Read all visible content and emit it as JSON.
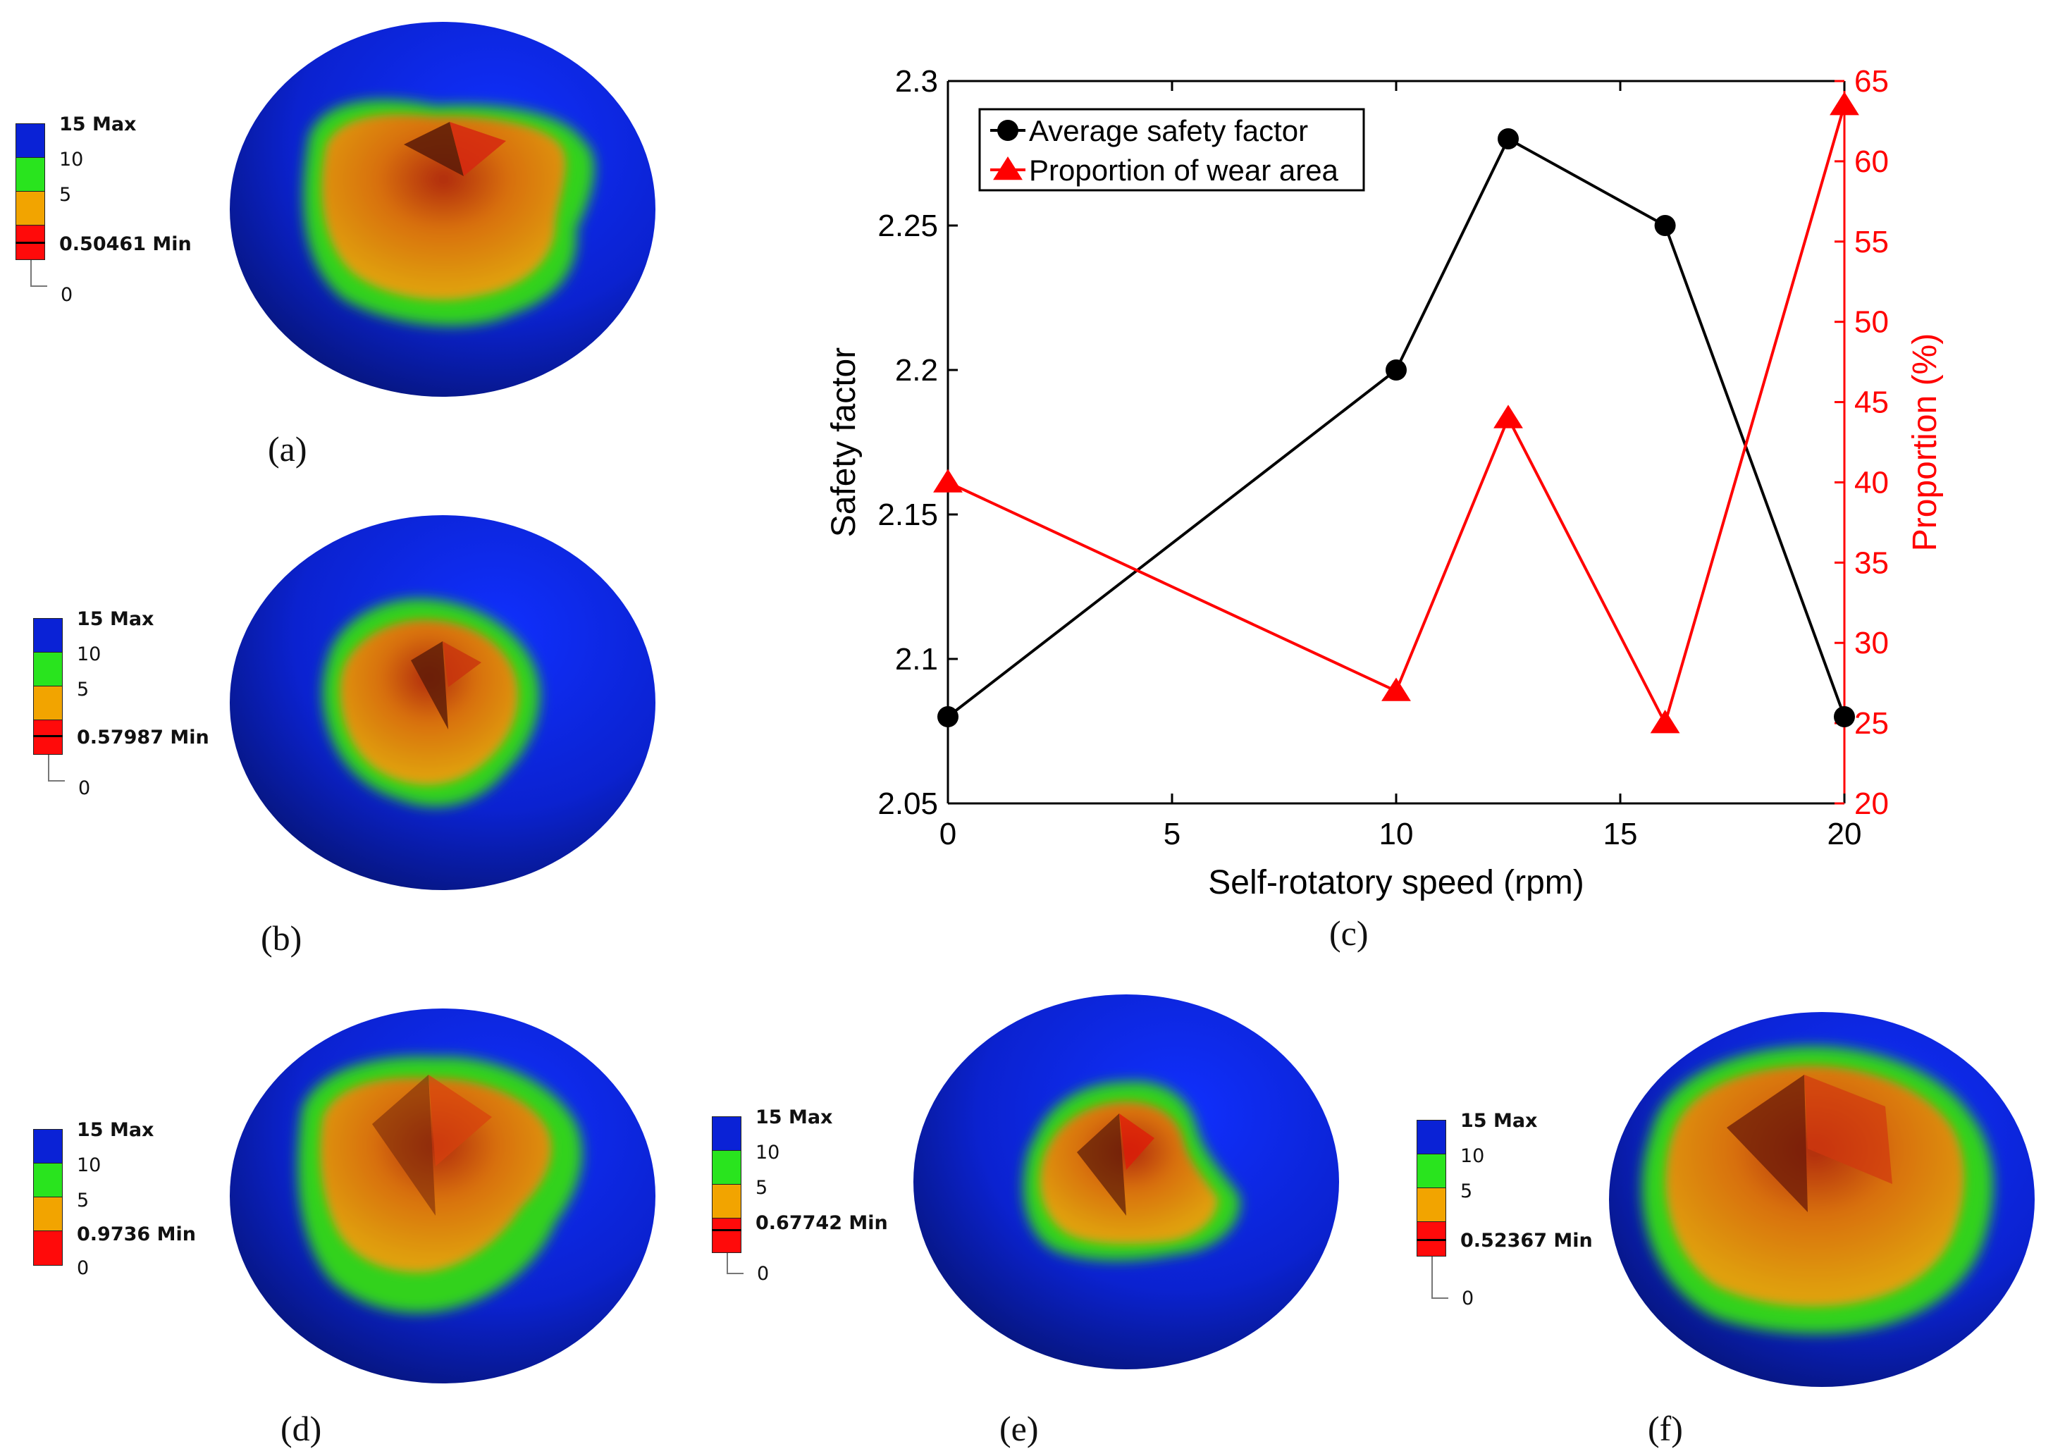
{
  "colors": {
    "blue": "#0a22d6",
    "green": "#29e41e",
    "orange": "#f2a400",
    "red": "#ff0a0a",
    "series_black": "#000000",
    "series_red": "#ff0000"
  },
  "panels": [
    {
      "id": "a",
      "caption": "(a)",
      "legend": {
        "max_label": "15 Max",
        "t10": "10",
        "t5": "5",
        "min_label": "0.50461 Min",
        "zero": "0"
      }
    },
    {
      "id": "b",
      "caption": "(b)",
      "legend": {
        "max_label": "15 Max",
        "t10": "10",
        "t5": "5",
        "min_label": "0.57987 Min",
        "zero": "0"
      }
    },
    {
      "id": "d",
      "caption": "(d)",
      "legend": {
        "max_label": "15 Max",
        "t10": "10",
        "t5": "5",
        "min_label": "0.9736 Min",
        "zero": "0"
      }
    },
    {
      "id": "e",
      "caption": "(e)",
      "legend": {
        "max_label": "15 Max",
        "t10": "10",
        "t5": "5",
        "min_label": "0.67742 Min",
        "zero": "0"
      }
    },
    {
      "id": "f",
      "caption": "(f)",
      "legend": {
        "max_label": "15 Max",
        "t10": "10",
        "t5": "5",
        "min_label": "0.52367 Min",
        "zero": "0"
      }
    }
  ],
  "chart_caption": "(c)",
  "chart_data": {
    "type": "line",
    "xlabel": "Self-rotatory speed (rpm)",
    "ylabel": "Safety factor",
    "y2label": "Proportion (%)",
    "xlim": [
      0,
      20
    ],
    "ylim": [
      2.05,
      2.3
    ],
    "y2lim": [
      20,
      65
    ],
    "xticks": [
      "0",
      "5",
      "10",
      "15",
      "20"
    ],
    "xtick_values": [
      0,
      5,
      10,
      15,
      20
    ],
    "yticks": [
      "2.05",
      "2.1",
      "2.15",
      "2.2",
      "2.25",
      "2.3"
    ],
    "ytick_values": [
      2.05,
      2.1,
      2.15,
      2.2,
      2.25,
      2.3
    ],
    "y2ticks": [
      "20",
      "25",
      "30",
      "35",
      "40",
      "45",
      "50",
      "55",
      "60",
      "65"
    ],
    "y2tick_values": [
      20,
      25,
      30,
      35,
      40,
      45,
      50,
      55,
      60,
      65
    ],
    "legend_position": "top-left",
    "series": [
      {
        "name": "Average safety factor",
        "axis": "left",
        "marker": "circle",
        "color": "#000000",
        "x": [
          0,
          10,
          12.5,
          16,
          20
        ],
        "values": [
          2.08,
          2.2,
          2.28,
          2.25,
          2.08
        ]
      },
      {
        "name": "Proportion of wear area",
        "axis": "right",
        "marker": "triangle",
        "color": "#ff0000",
        "x": [
          0,
          10,
          12.5,
          16,
          20
        ],
        "values": [
          40,
          27,
          44,
          25,
          63.5
        ]
      }
    ]
  }
}
